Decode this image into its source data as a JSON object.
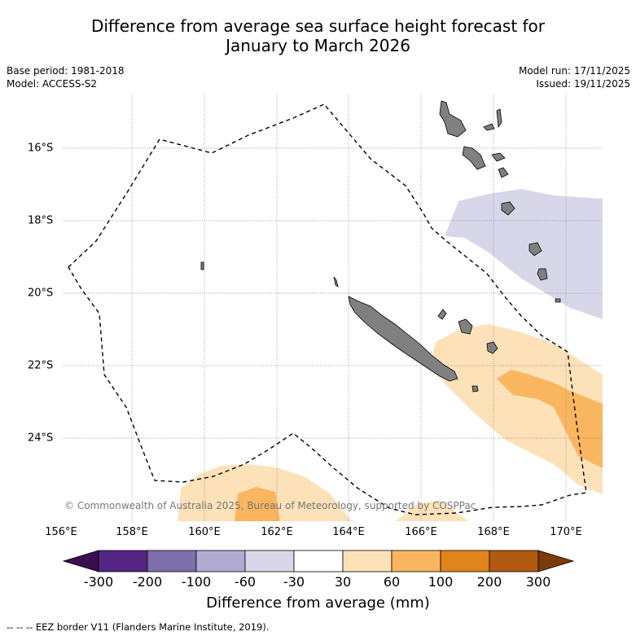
{
  "title_line1": "Difference from average sea surface height forecast for",
  "title_line2": "January to March 2026",
  "meta_left": [
    "Base period: 1981-2018",
    "Model: ACCESS-S2"
  ],
  "meta_right": [
    "Model run: 17/11/2025",
    "Issued: 19/11/2025"
  ],
  "axes": {
    "lon_labels": [
      "156°E",
      "158°E",
      "160°E",
      "162°E",
      "164°E",
      "166°E",
      "168°E",
      "170°E"
    ],
    "lat_labels": [
      "16°S",
      "18°S",
      "20°S",
      "22°S",
      "24°S"
    ]
  },
  "copyright": "© Commonwealth of Australia 2025, Bureau of Meteorology, supported by COSPPac",
  "colorbar": {
    "title": "Difference from average (mm)",
    "ticks": [
      "-300",
      "-200",
      "-100",
      "-60",
      "-30",
      "30",
      "60",
      "100",
      "200",
      "300"
    ],
    "colors": [
      "#3b0f4f",
      "#552584",
      "#7e6fad",
      "#b0a9d2",
      "#d8d7ea",
      "#ffffff",
      "#fde1b9",
      "#fab55f",
      "#e1841b",
      "#b15a0f",
      "#7d3b08"
    ]
  },
  "footer": "--  --  -- EEZ border V11 (Flanders Marine Institute, 2019).",
  "legend_items": {
    "eez_border": "EEZ border",
    "land_color": "#808080"
  }
}
